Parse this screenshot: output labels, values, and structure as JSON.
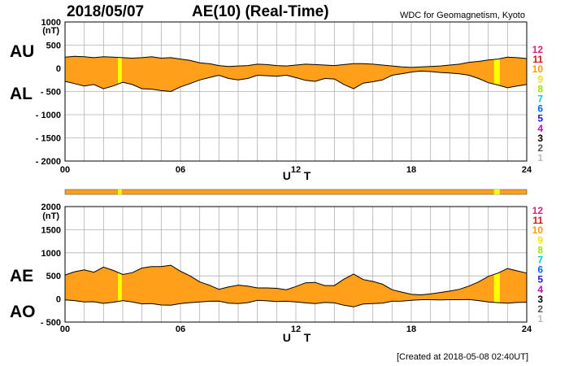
{
  "header": {
    "date": "2018/05/07",
    "title": "AE(10) (Real-Time)",
    "credit": "WDC for Geomagnetism, Kyoto"
  },
  "footer": {
    "created": "[Created at 2018-05-08 02:40UT]"
  },
  "legend": {
    "items": [
      {
        "label": "12",
        "color": "#e0207a"
      },
      {
        "label": "11",
        "color": "#cc1a1a"
      },
      {
        "label": "10",
        "color": "#ff9900"
      },
      {
        "label": "9",
        "color": "#f2e600"
      },
      {
        "label": "8",
        "color": "#99e600"
      },
      {
        "label": "7",
        "color": "#00cccc"
      },
      {
        "label": "6",
        "color": "#0066ff"
      },
      {
        "label": "5",
        "color": "#1a1acc"
      },
      {
        "label": "4",
        "color": "#cc00cc"
      },
      {
        "label": "3",
        "color": "#000000"
      },
      {
        "label": "2",
        "color": "#555555"
      },
      {
        "label": "1",
        "color": "#bbbbbb"
      }
    ]
  },
  "colors": {
    "fill": "#ff9f1a",
    "highlight": "#ffff00",
    "line": "#000000",
    "grid": "#b0b0b0"
  },
  "chart_data": [
    {
      "type": "area",
      "name": "AU/AL",
      "label_upper": "AU",
      "label_lower": "AL",
      "unit": "(nT)",
      "xlabel": "U T",
      "xlim": [
        0,
        24
      ],
      "x_ticks": [
        "00",
        "06",
        "12",
        "18",
        "24"
      ],
      "ylim": [
        -2000,
        1000
      ],
      "y_ticks": [
        "1000",
        "500",
        "0",
        "- 500",
        "- 1000",
        "- 1500",
        "- 2000"
      ],
      "highlight_bands": [
        [
          2.75,
          2.95
        ],
        [
          22.3,
          22.6
        ]
      ],
      "x": [
        0,
        0.5,
        1,
        1.5,
        2,
        2.5,
        3,
        3.5,
        4,
        4.5,
        5,
        5.5,
        6,
        6.5,
        7,
        7.5,
        8,
        8.5,
        9,
        9.5,
        10,
        10.5,
        11,
        11.5,
        12,
        12.5,
        13,
        13.5,
        14,
        14.5,
        15,
        15.5,
        16,
        16.5,
        17,
        17.5,
        18,
        18.5,
        19,
        19.5,
        20,
        20.5,
        21,
        21.5,
        22,
        22.5,
        23,
        23.5,
        24
      ],
      "series": [
        {
          "name": "AU",
          "values": [
            240,
            260,
            250,
            230,
            250,
            240,
            230,
            220,
            230,
            250,
            220,
            230,
            200,
            170,
            120,
            100,
            60,
            40,
            50,
            60,
            90,
            80,
            60,
            50,
            70,
            90,
            80,
            70,
            60,
            80,
            100,
            100,
            90,
            70,
            50,
            30,
            20,
            30,
            40,
            50,
            70,
            90,
            130,
            150,
            180,
            200,
            240,
            230,
            210
          ]
        },
        {
          "name": "AL",
          "values": [
            -280,
            -330,
            -380,
            -350,
            -440,
            -380,
            -300,
            -350,
            -440,
            -450,
            -480,
            -500,
            -400,
            -330,
            -250,
            -200,
            -150,
            -220,
            -250,
            -220,
            -150,
            -160,
            -170,
            -150,
            -200,
            -260,
            -280,
            -220,
            -230,
            -350,
            -440,
            -320,
            -290,
            -250,
            -150,
            -120,
            -80,
            -60,
            -70,
            -90,
            -100,
            -120,
            -150,
            -220,
            -310,
            -360,
            -420,
            -380,
            -350
          ]
        }
      ]
    },
    {
      "type": "area",
      "name": "AE/AO",
      "label_upper": "AE",
      "label_lower": "AO",
      "unit": "(nT)",
      "xlabel": "U T",
      "xlim": [
        0,
        24
      ],
      "x_ticks": [
        "00",
        "06",
        "12",
        "18",
        "24"
      ],
      "ylim": [
        -500,
        2000
      ],
      "y_ticks": [
        "2000",
        "1500",
        "1000",
        "500",
        "0",
        "- 500"
      ],
      "highlight_bands": [
        [
          2.75,
          2.95
        ],
        [
          22.3,
          22.6
        ]
      ],
      "x": [
        0,
        0.5,
        1,
        1.5,
        2,
        2.5,
        3,
        3.5,
        4,
        4.5,
        5,
        5.5,
        6,
        6.5,
        7,
        7.5,
        8,
        8.5,
        9,
        9.5,
        10,
        10.5,
        11,
        11.5,
        12,
        12.5,
        13,
        13.5,
        14,
        14.5,
        15,
        15.5,
        16,
        16.5,
        17,
        17.5,
        18,
        18.5,
        19,
        19.5,
        20,
        20.5,
        21,
        21.5,
        22,
        22.5,
        23,
        23.5,
        24
      ],
      "series": [
        {
          "name": "AE",
          "values": [
            520,
            590,
            630,
            580,
            690,
            620,
            530,
            570,
            670,
            700,
            700,
            730,
            600,
            500,
            370,
            300,
            210,
            260,
            300,
            280,
            240,
            240,
            230,
            200,
            270,
            350,
            360,
            290,
            290,
            430,
            540,
            420,
            380,
            320,
            200,
            150,
            100,
            90,
            110,
            140,
            170,
            210,
            280,
            370,
            490,
            560,
            660,
            610,
            560
          ]
        },
        {
          "name": "AO",
          "values": [
            -20,
            -35,
            -65,
            -60,
            -95,
            -70,
            -35,
            -65,
            -105,
            -100,
            -130,
            -135,
            -100,
            -80,
            -65,
            -50,
            -45,
            -90,
            -100,
            -80,
            -30,
            -40,
            -55,
            -50,
            -65,
            -85,
            -100,
            -75,
            -85,
            -135,
            -170,
            -110,
            -100,
            -90,
            -50,
            -45,
            -30,
            -15,
            -15,
            -20,
            -15,
            -15,
            -10,
            -35,
            -65,
            -80,
            -90,
            -75,
            -70
          ]
        }
      ]
    }
  ]
}
